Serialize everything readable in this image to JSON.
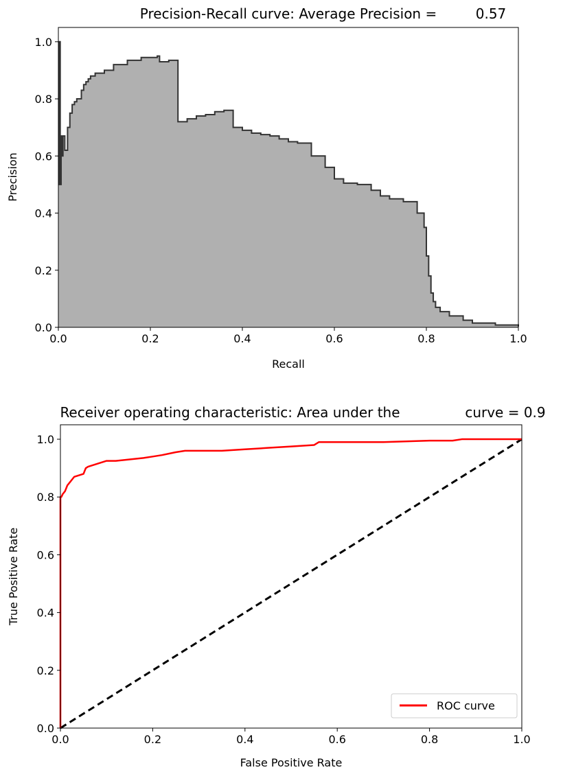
{
  "chart_data": [
    {
      "type": "area",
      "title": "Precision-Recall curve: Average Precision =",
      "title_value": "0.57",
      "xlabel": "Recall",
      "ylabel": "Precision",
      "xlim": [
        0,
        1
      ],
      "ylim": [
        0,
        1.05
      ],
      "xticks": [
        "0.0",
        "0.2",
        "0.4",
        "0.6",
        "0.8",
        "1.0"
      ],
      "yticks": [
        "0.0",
        "0.2",
        "0.4",
        "0.6",
        "0.8",
        "1.0"
      ],
      "grid": false,
      "colors": {
        "fill": "#b0b0b0",
        "line": "#333333"
      },
      "series": [
        {
          "x": [
            0,
            0.002,
            0.004,
            0.006,
            0.008,
            0.01,
            0.014,
            0.02,
            0.025,
            0.03,
            0.035,
            0.04,
            0.05,
            0.055,
            0.06,
            0.065,
            0.07,
            0.075,
            0.08,
            0.1,
            0.12,
            0.15,
            0.18,
            0.215,
            0.22,
            0.24,
            0.26,
            0.28,
            0.3,
            0.32,
            0.34,
            0.36,
            0.38,
            0.4,
            0.42,
            0.44,
            0.46,
            0.48,
            0.5,
            0.52,
            0.55,
            0.58,
            0.6,
            0.62,
            0.65,
            0.68,
            0.7,
            0.72,
            0.75,
            0.78,
            0.795,
            0.8,
            0.805,
            0.81,
            0.815,
            0.82,
            0.83,
            0.85,
            0.88,
            0.9,
            0.95,
            1.0
          ],
          "y": [
            0.5,
            1.0,
            0.5,
            0.67,
            0.6,
            0.67,
            0.62,
            0.7,
            0.75,
            0.78,
            0.79,
            0.8,
            0.83,
            0.85,
            0.86,
            0.87,
            0.88,
            0.88,
            0.89,
            0.9,
            0.92,
            0.935,
            0.945,
            0.95,
            0.93,
            0.935,
            0.72,
            0.73,
            0.74,
            0.745,
            0.755,
            0.76,
            0.7,
            0.69,
            0.68,
            0.675,
            0.67,
            0.66,
            0.65,
            0.645,
            0.6,
            0.56,
            0.52,
            0.505,
            0.5,
            0.48,
            0.46,
            0.45,
            0.44,
            0.4,
            0.35,
            0.25,
            0.18,
            0.12,
            0.09,
            0.07,
            0.055,
            0.04,
            0.025,
            0.015,
            0.008,
            0.003
          ]
        }
      ]
    },
    {
      "type": "line",
      "title": "Receiver operating characteristic: Area under the",
      "title_value": "curve = 0.9",
      "xlabel": "False Positive Rate",
      "ylabel": "True Positive Rate",
      "xlim": [
        0,
        1
      ],
      "ylim": [
        0,
        1.05
      ],
      "xticks": [
        "0.0",
        "0.2",
        "0.4",
        "0.6",
        "0.8",
        "1.0"
      ],
      "yticks": [
        "0.0",
        "0.2",
        "0.4",
        "0.6",
        "0.8",
        "1.0"
      ],
      "grid": false,
      "legend": {
        "position": "lower-right"
      },
      "colors": {
        "roc": "#ff0000",
        "chance": "#000000"
      },
      "series": [
        {
          "name": "ROC curve",
          "x": [
            0,
            0,
            0.002,
            0.005,
            0.01,
            0.015,
            0.02,
            0.025,
            0.03,
            0.04,
            0.05,
            0.055,
            0.06,
            0.07,
            0.08,
            0.09,
            0.1,
            0.12,
            0.15,
            0.18,
            0.2,
            0.22,
            0.25,
            0.27,
            0.3,
            0.35,
            0.4,
            0.45,
            0.5,
            0.55,
            0.56,
            0.6,
            0.7,
            0.8,
            0.85,
            0.87,
            0.9,
            0.95,
            1.0
          ],
          "y": [
            0,
            0.8,
            0.8,
            0.81,
            0.82,
            0.84,
            0.85,
            0.86,
            0.87,
            0.875,
            0.88,
            0.9,
            0.905,
            0.91,
            0.915,
            0.92,
            0.925,
            0.925,
            0.93,
            0.935,
            0.94,
            0.945,
            0.955,
            0.96,
            0.96,
            0.96,
            0.965,
            0.97,
            0.975,
            0.98,
            0.99,
            0.99,
            0.99,
            0.995,
            0.995,
            1.0,
            1.0,
            1.0,
            1.0
          ]
        },
        {
          "x": [
            0,
            1
          ],
          "y": [
            0,
            1
          ]
        }
      ]
    }
  ]
}
